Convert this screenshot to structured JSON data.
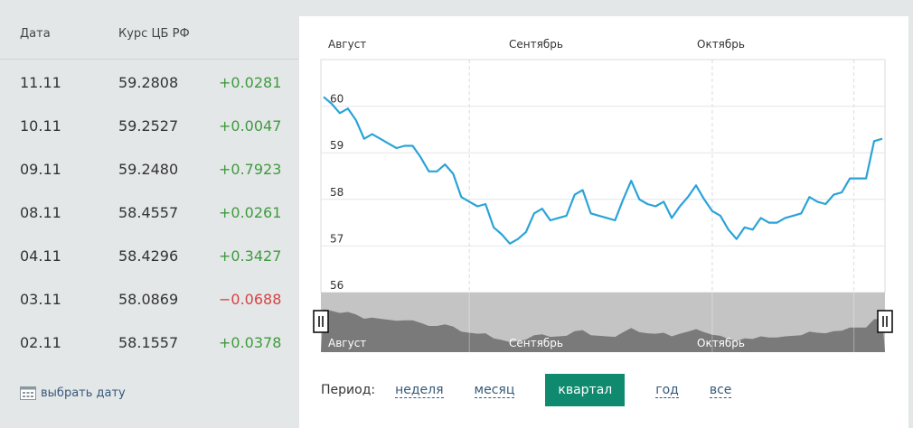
{
  "table": {
    "header_date": "Дата",
    "header_rate": "Курс ЦБ РФ",
    "rows": [
      {
        "date": "11.11",
        "value": "59.2808",
        "change": "+0.0281",
        "dir": "up"
      },
      {
        "date": "10.11",
        "value": "59.2527",
        "change": "+0.0047",
        "dir": "up"
      },
      {
        "date": "09.11",
        "value": "59.2480",
        "change": "+0.7923",
        "dir": "up"
      },
      {
        "date": "08.11",
        "value": "58.4557",
        "change": "+0.0261",
        "dir": "up"
      },
      {
        "date": "04.11",
        "value": "58.4296",
        "change": "+0.3427",
        "dir": "up"
      },
      {
        "date": "03.11",
        "value": "58.0869",
        "change": "−0.0688",
        "dir": "down"
      },
      {
        "date": "02.11",
        "value": "58.1557",
        "change": "+0.0378",
        "dir": "up"
      }
    ],
    "pick_date_label": "выбрать дату"
  },
  "period": {
    "label": "Период:",
    "options": [
      "неделя",
      "месяц",
      "квартал",
      "год",
      "все"
    ],
    "active": "квартал"
  },
  "colors": {
    "line": "#2aa3d8",
    "up": "#3f9a3f",
    "down": "#d64343",
    "accent": "#108a6e",
    "link": "#35597a"
  },
  "chart_data": {
    "type": "line",
    "months": [
      "Август",
      "Сентябрь",
      "Октябрь"
    ],
    "y_ticks": [
      56,
      57,
      58,
      59,
      60
    ],
    "ylim": [
      56,
      61
    ],
    "x": [
      0,
      1,
      2,
      3,
      4,
      5,
      6,
      7,
      8,
      9,
      10,
      11,
      12,
      13,
      14,
      15,
      16,
      17,
      18,
      19,
      20,
      21,
      22,
      23,
      24,
      25,
      26,
      27,
      28,
      29,
      30,
      31,
      32,
      33,
      34,
      35,
      36,
      37,
      38,
      39,
      40,
      41,
      42,
      43,
      44,
      45,
      46,
      47,
      48,
      49,
      50,
      51,
      52,
      53,
      54,
      55,
      56,
      57,
      58,
      59,
      60,
      61,
      62,
      63,
      64,
      65,
      66,
      67,
      68,
      69
    ],
    "values": [
      60.2,
      60.05,
      59.85,
      59.95,
      59.7,
      59.3,
      59.4,
      59.3,
      59.2,
      59.1,
      59.15,
      59.15,
      58.9,
      58.6,
      58.6,
      58.75,
      58.55,
      58.05,
      57.95,
      57.85,
      57.9,
      57.4,
      57.25,
      57.05,
      57.15,
      57.3,
      57.7,
      57.8,
      57.55,
      57.6,
      57.65,
      58.1,
      58.2,
      57.7,
      57.65,
      57.6,
      57.55,
      58.0,
      58.4,
      58.0,
      57.9,
      57.85,
      57.95,
      57.6,
      57.85,
      58.05,
      58.3,
      58.0,
      57.75,
      57.65,
      57.35,
      57.15,
      57.4,
      57.35,
      57.6,
      57.5,
      57.5,
      57.6,
      57.65,
      57.7,
      58.05,
      57.95,
      57.9,
      58.1,
      58.15,
      58.45,
      58.45,
      58.45,
      59.25,
      59.3
    ],
    "month_starts": [
      0,
      18,
      48
    ],
    "navigator_labels": [
      "Август",
      "Сентябрь",
      "Октябрь"
    ]
  }
}
